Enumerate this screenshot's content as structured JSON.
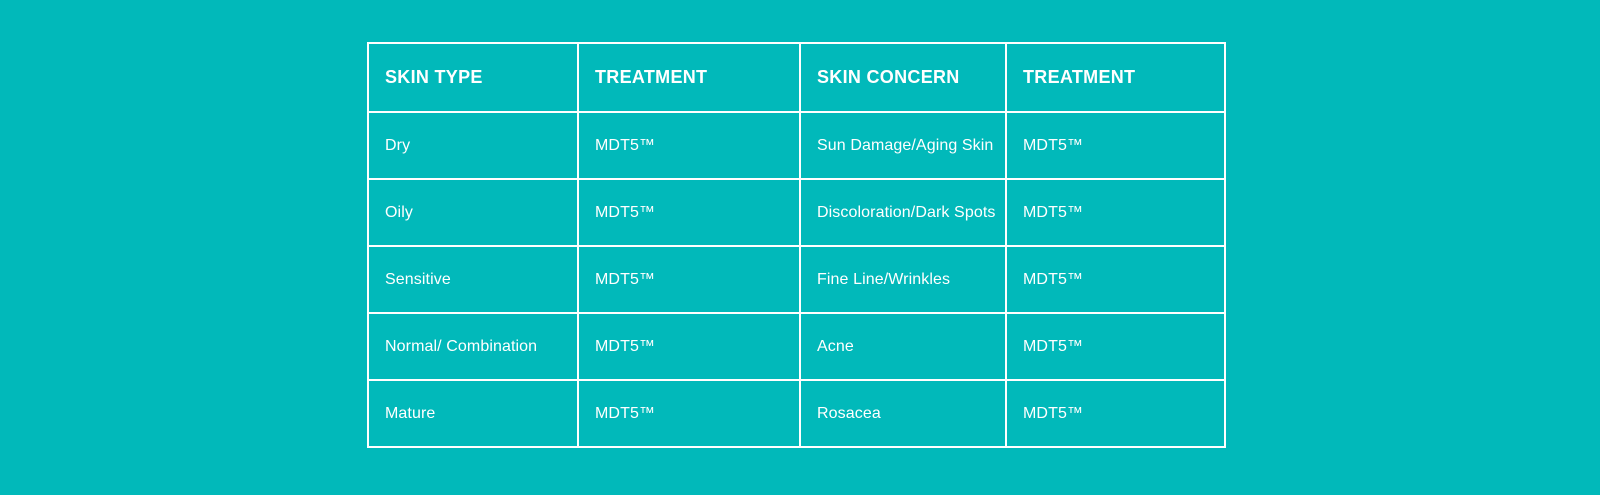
{
  "chart_data": {
    "type": "table",
    "columns": [
      "SKIN TYPE",
      "TREATMENT",
      "SKIN CONCERN",
      "TREATMENT"
    ],
    "rows": [
      [
        "Dry",
        "MDT5™",
        "Sun Damage/Aging Skin",
        "MDT5™"
      ],
      [
        "Oily",
        "MDT5™",
        "Discoloration/Dark Spots",
        "MDT5™"
      ],
      [
        "Sensitive",
        "MDT5™",
        "Fine Line/Wrinkles",
        "MDT5™"
      ],
      [
        "Normal/ Combination",
        "MDT5™",
        "Acne",
        "MDT5™"
      ],
      [
        "Mature",
        "MDT5™",
        "Rosacea",
        "MDT5™"
      ]
    ],
    "layout": {
      "legend": "none",
      "grid": "white cell borders, collapsed, on solid teal background",
      "header_style": "bold uppercase white",
      "cell_style": "regular white, left-aligned, vertically centered"
    }
  },
  "style": {
    "background_color": "#01b9ba",
    "border_color": "#ffffff",
    "text_color": "#ffffff"
  }
}
